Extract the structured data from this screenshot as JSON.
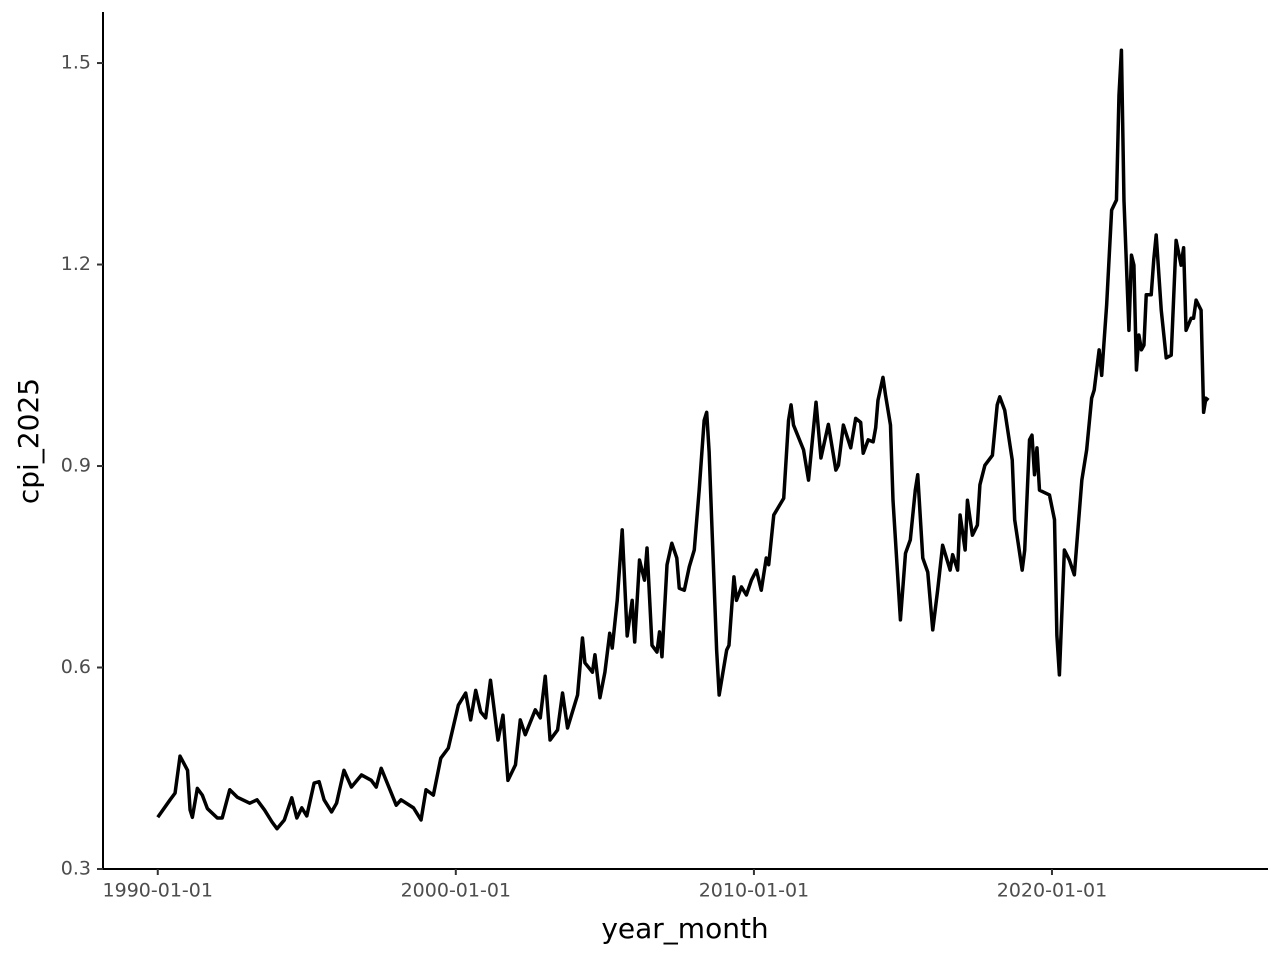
{
  "chart_data": {
    "type": "line",
    "x_label": "year_month",
    "y_label": "cpi_2025",
    "x": [
      "1990-01-01",
      "1990-06-01",
      "1990-08-01",
      "1990-10-01",
      "1991-01-01",
      "1991-02-01",
      "1991-03-01",
      "1991-05-01",
      "1991-07-01",
      "1991-09-01",
      "1992-01-01",
      "1992-03-01",
      "1992-06-01",
      "1992-09-01",
      "1993-02-01",
      "1993-05-01",
      "1993-08-01",
      "1993-11-01",
      "1994-01-01",
      "1994-04-01",
      "1994-07-01",
      "1994-09-01",
      "1994-11-01",
      "1995-01-01",
      "1995-04-01",
      "1995-06-01",
      "1995-08-01",
      "1995-11-01",
      "1996-01-01",
      "1996-04-01",
      "1996-07-01",
      "1996-11-01",
      "1997-03-01",
      "1997-05-01",
      "1997-07-01",
      "1998-01-01",
      "1998-03-01",
      "1998-08-01",
      "1998-11-01",
      "1999-01-01",
      "1999-04-01",
      "1999-07-01",
      "1999-10-01",
      "2000-02-01",
      "2000-05-01",
      "2000-07-01",
      "2000-09-01",
      "2000-11-01",
      "2001-01-01",
      "2001-03-01",
      "2001-06-01",
      "2001-08-01",
      "2001-10-01",
      "2002-01-01",
      "2002-03-01",
      "2002-05-01",
      "2002-09-01",
      "2002-11-01",
      "2003-01-01",
      "2003-03-01",
      "2003-06-01",
      "2003-08-01",
      "2003-10-01",
      "2004-02-01",
      "2004-04-01",
      "2004-05-01",
      "2004-08-01",
      "2004-09-01",
      "2004-11-01",
      "2005-01-01",
      "2005-03-01",
      "2005-04-01",
      "2005-06-01",
      "2005-08-01",
      "2005-10-01",
      "2005-12-01",
      "2006-01-01",
      "2006-03-01",
      "2006-05-01",
      "2006-06-01",
      "2006-08-01",
      "2006-10-01",
      "2006-11-01",
      "2006-12-01",
      "2007-02-01",
      "2007-04-01",
      "2007-06-01",
      "2007-07-01",
      "2007-09-01",
      "2007-11-01",
      "2008-01-01",
      "2008-03-01",
      "2008-05-01",
      "2008-06-01",
      "2008-07-01",
      "2008-08-01",
      "2008-10-01",
      "2008-11-01",
      "2009-02-01",
      "2009-03-01",
      "2009-05-01",
      "2009-06-01",
      "2009-08-01",
      "2009-10-01",
      "2009-12-01",
      "2010-02-01",
      "2010-04-01",
      "2010-06-01",
      "2010-07-01",
      "2010-09-01",
      "2011-01-01",
      "2011-03-01",
      "2011-04-01",
      "2011-05-01",
      "2011-09-01",
      "2011-11-01",
      "2012-02-01",
      "2012-04-01",
      "2012-07-01",
      "2012-10-01",
      "2012-11-01",
      "2013-01-01",
      "2013-04-01",
      "2013-06-01",
      "2013-08-01",
      "2013-09-01",
      "2013-11-01",
      "2014-01-01",
      "2014-02-01",
      "2014-03-01",
      "2014-05-01",
      "2014-06-01",
      "2014-08-01",
      "2014-09-01",
      "2014-12-01",
      "2015-02-01",
      "2015-04-01",
      "2015-06-01",
      "2015-07-01",
      "2015-09-01",
      "2015-11-01",
      "2016-01-01",
      "2016-03-01",
      "2016-05-01",
      "2016-08-01",
      "2016-09-01",
      "2016-11-01",
      "2016-12-01",
      "2017-02-01",
      "2017-03-01",
      "2017-05-01",
      "2017-07-01",
      "2017-08-01",
      "2017-10-01",
      "2018-01-01",
      "2018-03-01",
      "2018-04-01",
      "2018-06-01",
      "2018-09-01",
      "2018-10-01",
      "2019-01-01",
      "2019-02-01",
      "2019-04-01",
      "2019-05-01",
      "2019-06-01",
      "2019-07-01",
      "2019-08-01",
      "2019-12-01",
      "2020-02-01",
      "2020-03-01",
      "2020-04-01",
      "2020-06-01",
      "2020-08-01",
      "2020-10-01",
      "2021-01-01",
      "2021-03-01",
      "2021-05-01",
      "2021-06-01",
      "2021-08-01",
      "2021-09-01",
      "2021-11-01",
      "2022-01-01",
      "2022-03-01",
      "2022-04-01",
      "2022-05-01",
      "2022-06-01",
      "2022-08-01",
      "2022-09-01",
      "2022-10-01",
      "2022-11-01",
      "2022-12-01",
      "2023-01-01",
      "2023-02-01",
      "2023-03-01",
      "2023-05-01",
      "2023-06-01",
      "2023-07-01",
      "2023-09-01",
      "2023-11-01",
      "2024-01-01",
      "2024-03-01",
      "2024-05-01",
      "2024-06-01",
      "2024-07-01",
      "2024-09-01",
      "2024-10-01",
      "2024-11-01",
      "2025-01-01",
      "2025-02-01",
      "2025-03-01",
      "2025-04-01"
    ],
    "series": [
      {
        "name": "cpi_2025",
        "color": "#000000",
        "values": [
          0.377,
          0.403,
          0.413,
          0.468,
          0.447,
          0.388,
          0.377,
          0.42,
          0.41,
          0.39,
          0.376,
          0.376,
          0.418,
          0.407,
          0.398,
          0.403,
          0.388,
          0.37,
          0.36,
          0.373,
          0.406,
          0.376,
          0.391,
          0.379,
          0.428,
          0.43,
          0.403,
          0.385,
          0.398,
          0.447,
          0.422,
          0.44,
          0.432,
          0.422,
          0.45,
          0.395,
          0.403,
          0.391,
          0.373,
          0.418,
          0.41,
          0.465,
          0.48,
          0.544,
          0.562,
          0.522,
          0.566,
          0.534,
          0.525,
          0.581,
          0.492,
          0.529,
          0.432,
          0.455,
          0.522,
          0.5,
          0.537,
          0.525,
          0.587,
          0.492,
          0.507,
          0.562,
          0.51,
          0.559,
          0.644,
          0.607,
          0.593,
          0.619,
          0.555,
          0.593,
          0.651,
          0.629,
          0.7,
          0.805,
          0.647,
          0.7,
          0.638,
          0.76,
          0.73,
          0.778,
          0.633,
          0.623,
          0.653,
          0.616,
          0.753,
          0.785,
          0.763,
          0.718,
          0.715,
          0.75,
          0.775,
          0.864,
          0.968,
          0.98,
          0.921,
          0.82,
          0.626,
          0.559,
          0.626,
          0.633,
          0.735,
          0.7,
          0.72,
          0.708,
          0.73,
          0.745,
          0.715,
          0.763,
          0.753,
          0.827,
          0.852,
          0.968,
          0.991,
          0.961,
          0.924,
          0.879,
          0.995,
          0.912,
          0.962,
          0.894,
          0.901,
          0.961,
          0.927,
          0.971,
          0.965,
          0.919,
          0.939,
          0.936,
          0.957,
          0.998,
          1.032,
          1.006,
          0.961,
          0.849,
          0.671,
          0.77,
          0.79,
          0.864,
          0.887,
          0.763,
          0.742,
          0.656,
          0.715,
          0.782,
          0.745,
          0.768,
          0.745,
          0.827,
          0.775,
          0.849,
          0.797,
          0.812,
          0.872,
          0.901,
          0.916,
          0.991,
          1.003,
          0.983,
          0.909,
          0.82,
          0.745,
          0.775,
          0.939,
          0.946,
          0.887,
          0.927,
          0.864,
          0.857,
          0.82,
          0.648,
          0.589,
          0.775,
          0.76,
          0.738,
          0.879,
          0.924,
          1.001,
          1.013,
          1.073,
          1.035,
          1.14,
          1.281,
          1.296,
          1.452,
          1.519,
          1.296,
          1.102,
          1.214,
          1.199,
          1.043,
          1.095,
          1.073,
          1.08,
          1.155,
          1.155,
          1.207,
          1.244,
          1.132,
          1.061,
          1.065,
          1.236,
          1.199,
          1.225,
          1.102,
          1.12,
          1.12,
          1.147,
          1.132,
          0.98,
          1.001,
          0.998
        ]
      }
    ],
    "xlim": [
      "1988-03-01",
      "2027-04-01"
    ],
    "xticks": [
      "1990-01-01",
      "2000-01-01",
      "2010-01-01",
      "2020-01-01"
    ],
    "ylim": [
      0.3,
      1.576
    ],
    "yticks": [
      0.3,
      0.6,
      0.9,
      1.2,
      1.5
    ],
    "grid": false
  }
}
